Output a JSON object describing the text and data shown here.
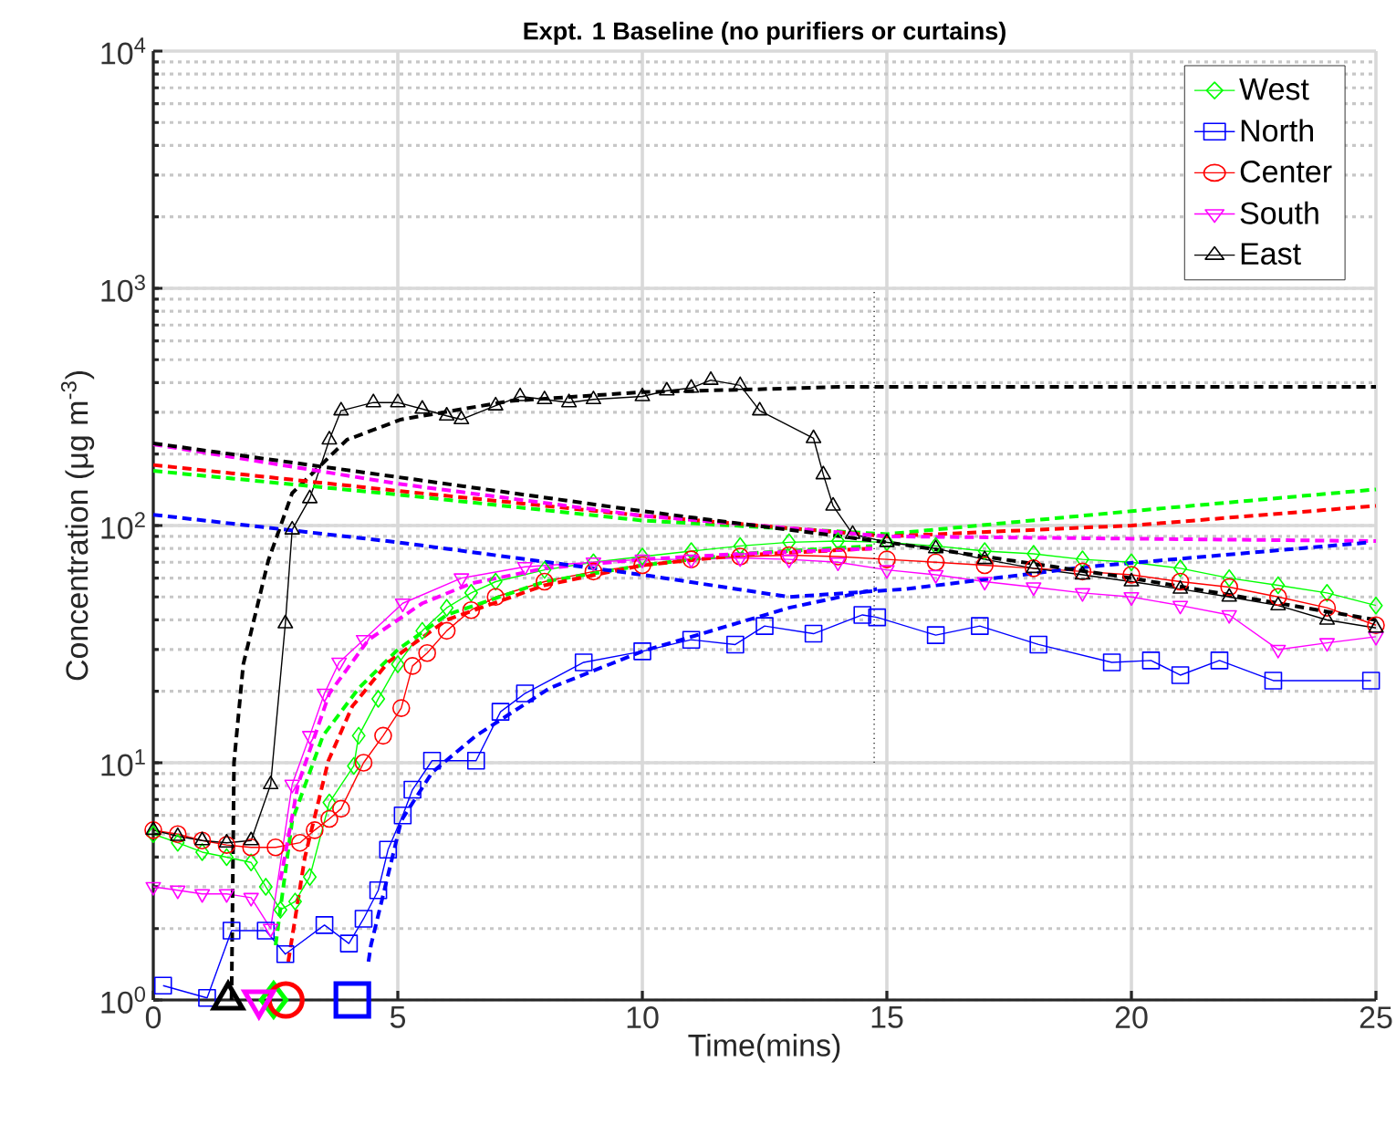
{
  "chart_data": {
    "type": "line",
    "title": "Expt. 1 Baseline (no purifiers or curtains)",
    "xlabel": "Time(mins)",
    "ylabel": "Concentration (μg m$^{-3}$)",
    "xlim": [
      0,
      25
    ],
    "xticks": [
      0,
      5,
      10,
      15,
      20,
      25
    ],
    "ylim": [
      1,
      10000
    ],
    "yticks": [
      {
        "value": 1,
        "label": "10$^{0}$"
      },
      {
        "value": 10,
        "label": "10$^{1}$"
      },
      {
        "value": 100,
        "label": "10$^{2}$"
      },
      {
        "value": 1000,
        "label": "10$^{3}$"
      },
      {
        "value": 10000,
        "label": "10$^{4}$"
      }
    ],
    "log": "y",
    "grid": true,
    "legend": "top right",
    "series": [
      {
        "name": "West",
        "color": "#00ff00",
        "marker": "diamond",
        "line_style": "solid",
        "x": [
          0,
          0.5,
          1,
          1.5,
          2,
          2.3,
          2.6,
          2.9,
          3.2,
          3.6,
          4.1,
          4.2,
          4.6,
          5,
          5.5,
          6,
          6.5,
          7,
          8,
          9,
          10,
          11,
          12,
          13,
          14,
          15,
          16,
          17,
          18,
          19,
          20,
          21,
          22,
          23,
          24,
          25
        ],
        "values": [
          5.0,
          4.6,
          4.2,
          4.0,
          3.8,
          3.0,
          2.4,
          2.6,
          3.3,
          6.8,
          9.7,
          13,
          18.6,
          26,
          36,
          45,
          52,
          58,
          65,
          70,
          74,
          78,
          82,
          85,
          86,
          85,
          82,
          78,
          76,
          72,
          70,
          66,
          60,
          56,
          52,
          46
        ]
      },
      {
        "name": "North",
        "color": "#0000ff",
        "marker": "square",
        "line_style": "solid",
        "x": [
          0.2,
          1.1,
          1.6,
          2.3,
          2.7,
          3.5,
          4.0,
          4.3,
          4.6,
          4.8,
          5.1,
          5.3,
          5.7,
          6.6,
          7.1,
          7.6,
          8.8,
          10.0,
          11.0,
          11.9,
          12.5,
          13.5,
          14.5,
          14.8,
          16,
          16.9,
          18.1,
          19.6,
          20.4,
          21,
          21.8,
          22.9,
          24.9
        ],
        "values": [
          1.15,
          1.02,
          1.96,
          1.96,
          1.56,
          2.07,
          1.73,
          2.2,
          2.9,
          4.3,
          6,
          7.7,
          10.2,
          10.2,
          16.4,
          19.6,
          26.5,
          29.5,
          33,
          31.5,
          37.7,
          35,
          42,
          41,
          34.5,
          37.7,
          31.5,
          26.5,
          27,
          23.4,
          27,
          22.2,
          22.2
        ]
      },
      {
        "name": "Center",
        "color": "#ff0000",
        "marker": "circle",
        "line_style": "solid",
        "x": [
          0,
          0.5,
          1,
          1.5,
          2,
          2.5,
          3,
          3.3,
          3.6,
          3.84,
          4.3,
          4.7,
          5.07,
          5.3,
          5.6,
          6,
          6.5,
          7,
          8,
          9,
          10,
          11,
          12,
          13,
          14,
          15,
          16,
          17,
          18,
          19,
          20,
          21,
          22,
          23,
          24,
          25
        ],
        "values": [
          5.2,
          5.0,
          4.7,
          4.5,
          4.4,
          4.4,
          4.6,
          5.2,
          5.8,
          6.4,
          10,
          13,
          17,
          25.6,
          29,
          36,
          44,
          50,
          58,
          64,
          68,
          72,
          74,
          75,
          74,
          72,
          70,
          68,
          66,
          64,
          62,
          58,
          55,
          50,
          45,
          38
        ]
      },
      {
        "name": "South",
        "color": "#ff00ff",
        "marker": "triangle-down",
        "line_style": "solid",
        "x": [
          0,
          0.5,
          1,
          1.5,
          2,
          2.4,
          2.84,
          3.2,
          3.5,
          3.8,
          4.3,
          5.1,
          6.3,
          7.6,
          9,
          10,
          11,
          12,
          13,
          14,
          15,
          16,
          17,
          18,
          19,
          20,
          21,
          22,
          23,
          24,
          25
        ],
        "values": [
          3.0,
          2.9,
          2.8,
          2.8,
          2.7,
          2.0,
          8.1,
          13,
          19.6,
          26.5,
          33,
          47,
          60,
          67,
          70,
          72,
          72,
          73,
          72,
          70,
          65,
          62,
          58,
          55,
          52,
          50,
          46,
          42,
          30,
          32,
          34
        ]
      },
      {
        "name": "East",
        "color": "#000000",
        "marker": "triangle",
        "line_style": "solid",
        "x": [
          0,
          0.5,
          1,
          1.5,
          2,
          2.4,
          2.7,
          2.84,
          3.2,
          3.6,
          3.84,
          4.5,
          5,
          5.5,
          6,
          6.3,
          7,
          7.5,
          8,
          8.5,
          9,
          10,
          10.5,
          11,
          11.4,
          12,
          12.4,
          13.5,
          13.7,
          13.9,
          14.3,
          15,
          16,
          17,
          18,
          19,
          20,
          21,
          22,
          23,
          24,
          25
        ],
        "values": [
          5.2,
          4.9,
          4.7,
          4.6,
          4.7,
          8.1,
          38.6,
          96,
          130,
          230,
          305,
          330,
          330,
          310,
          290,
          280,
          320,
          350,
          340,
          330,
          340,
          350,
          370,
          380,
          410,
          390,
          305,
          233,
          164,
          121,
          92,
          85,
          80,
          72,
          66,
          62,
          58,
          54,
          50,
          46,
          40,
          37
        ]
      },
      {
        "type": "line",
        "color": "#00ff00",
        "marker": "none",
        "line_style": "dashed",
        "x": [
          2.5,
          2.84,
          3.47,
          4.2,
          5,
          6,
          8,
          10,
          12,
          14.7
        ],
        "values": [
          1.7,
          5.7,
          13,
          20.6,
          30,
          42,
          58,
          68,
          76,
          82
        ]
      },
      {
        "type": "line",
        "color": "#ff0000",
        "marker": "none",
        "line_style": "dashed",
        "x": [
          2.76,
          3.1,
          3.58,
          4.07,
          4.8,
          6,
          8,
          10,
          12,
          14.7
        ],
        "values": [
          1.45,
          4,
          10.2,
          17.3,
          26.5,
          40,
          56,
          68,
          75,
          80
        ]
      },
      {
        "type": "line",
        "color": "#ff00ff",
        "marker": "none",
        "line_style": "dashed",
        "x": [
          2.6,
          2.96,
          3.6,
          4.4,
          5.5,
          6.5,
          8,
          10,
          12,
          14.7
        ],
        "values": [
          3.2,
          8.1,
          19.6,
          33,
          47,
          57,
          66,
          72,
          76,
          80
        ]
      },
      {
        "type": "line",
        "color": "#0000ff",
        "marker": "none",
        "line_style": "dashed",
        "x": [
          4.4,
          4.45,
          5.07,
          5.7,
          6.6,
          8.1,
          10,
          13,
          14.8
        ],
        "values": [
          1.45,
          1.7,
          5.7,
          9.1,
          13,
          20.6,
          29.5,
          45,
          54
        ]
      },
      {
        "type": "line",
        "color": "#000000",
        "marker": "none",
        "line_style": "dashed",
        "x": [
          1.6,
          1.65,
          1.84,
          2.35,
          2.84,
          3.96,
          5.07,
          7.3,
          10,
          12.3,
          14,
          25
        ],
        "values": [
          1,
          10,
          26,
          71,
          137,
          230,
          280,
          335,
          365,
          375,
          384,
          384
        ]
      },
      {
        "type": "line",
        "color": "#00ff00",
        "marker": "none",
        "line_style": "dashed",
        "x": [
          0,
          5,
          10,
          15,
          20,
          25
        ],
        "values": [
          170,
          135,
          105,
          92,
          115,
          142
        ]
      },
      {
        "type": "line",
        "color": "#ff0000",
        "marker": "none",
        "line_style": "dashed",
        "x": [
          0,
          5,
          10,
          15,
          20,
          25
        ],
        "values": [
          180,
          140,
          110,
          90,
          100,
          121
        ]
      },
      {
        "type": "line",
        "color": "#ff00ff",
        "marker": "none",
        "line_style": "dashed",
        "x": [
          0,
          5,
          10,
          15,
          20,
          25
        ],
        "values": [
          220,
          150,
          110,
          90,
          88,
          86
        ]
      },
      {
        "type": "line",
        "color": "#0000ff",
        "marker": "none",
        "line_style": "dashed",
        "x": [
          0,
          5,
          10,
          13,
          15.4,
          19.1,
          24.9
        ],
        "values": [
          111,
          85,
          62,
          50,
          54,
          67,
          85
        ]
      },
      {
        "type": "line",
        "color": "#000000",
        "marker": "none",
        "line_style": "dashed",
        "x": [
          0,
          5,
          10,
          15,
          20,
          25
        ],
        "values": [
          222,
          160,
          115,
          85,
          60,
          40
        ]
      },
      {
        "type": "line",
        "color": "#000000",
        "marker": "none",
        "line_style": "dotted",
        "x": [
          14.74,
          14.74
        ],
        "values": [
          10,
          1000
        ]
      },
      {
        "type": "scatter",
        "color": "#00ff00",
        "marker": "diamond",
        "x": [
          2.46
        ],
        "values": [
          1
        ]
      },
      {
        "type": "scatter",
        "color": "#ff0000",
        "marker": "circle",
        "x": [
          2.71
        ],
        "values": [
          1
        ]
      },
      {
        "type": "scatter",
        "color": "#0000ff",
        "marker": "square",
        "x": [
          4.07
        ],
        "values": [
          1
        ]
      },
      {
        "type": "scatter",
        "color": "#ff00ff",
        "marker": "triangle-down",
        "x": [
          2.16
        ],
        "values": [
          1
        ]
      },
      {
        "type": "scatter",
        "color": "#000000",
        "marker": "triangle",
        "x": [
          1.53
        ],
        "values": [
          1
        ]
      }
    ]
  }
}
